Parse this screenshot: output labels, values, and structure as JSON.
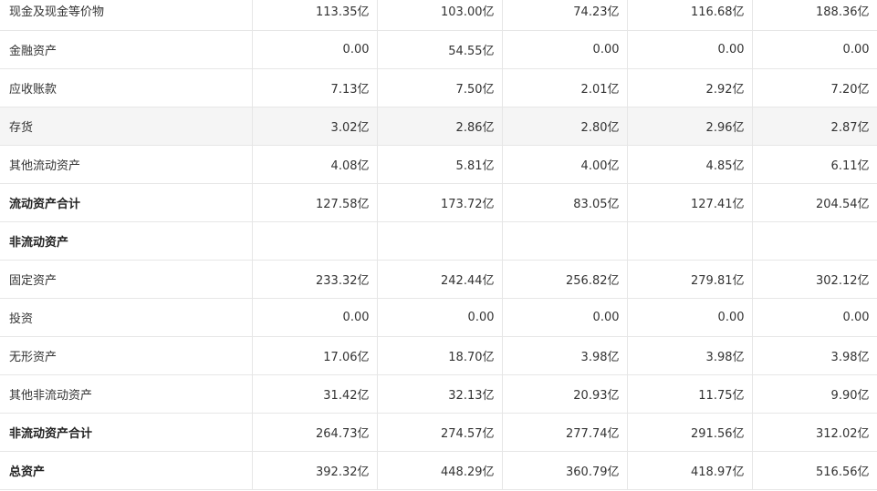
{
  "balance_sheet": {
    "rows": [
      {
        "label": "现金及现金等价物",
        "values": [
          "113.35亿",
          "103.00亿",
          "74.23亿",
          "116.68亿",
          "188.36亿"
        ],
        "bold": false,
        "shaded": false
      },
      {
        "label": "金融资产",
        "values": [
          "0.00",
          "54.55亿",
          "0.00",
          "0.00",
          "0.00"
        ],
        "bold": false,
        "shaded": false
      },
      {
        "label": "应收账款",
        "values": [
          "7.13亿",
          "7.50亿",
          "2.01亿",
          "2.92亿",
          "7.20亿"
        ],
        "bold": false,
        "shaded": false
      },
      {
        "label": "存货",
        "values": [
          "3.02亿",
          "2.86亿",
          "2.80亿",
          "2.96亿",
          "2.87亿"
        ],
        "bold": false,
        "shaded": true
      },
      {
        "label": "其他流动资产",
        "values": [
          "4.08亿",
          "5.81亿",
          "4.00亿",
          "4.85亿",
          "6.11亿"
        ],
        "bold": false,
        "shaded": false
      },
      {
        "label": "流动资产合计",
        "values": [
          "127.58亿",
          "173.72亿",
          "83.05亿",
          "127.41亿",
          "204.54亿"
        ],
        "bold": true,
        "shaded": false
      },
      {
        "label": "非流动资产",
        "values": [
          "",
          "",
          "",
          "",
          ""
        ],
        "bold": true,
        "shaded": false
      },
      {
        "label": "固定资产",
        "values": [
          "233.32亿",
          "242.44亿",
          "256.82亿",
          "279.81亿",
          "302.12亿"
        ],
        "bold": false,
        "shaded": false
      },
      {
        "label": "投资",
        "values": [
          "0.00",
          "0.00",
          "0.00",
          "0.00",
          "0.00"
        ],
        "bold": false,
        "shaded": false
      },
      {
        "label": "无形资产",
        "values": [
          "17.06亿",
          "18.70亿",
          "3.98亿",
          "3.98亿",
          "3.98亿"
        ],
        "bold": false,
        "shaded": false
      },
      {
        "label": "其他非流动资产",
        "values": [
          "31.42亿",
          "32.13亿",
          "20.93亿",
          "11.75亿",
          "9.90亿"
        ],
        "bold": false,
        "shaded": false
      },
      {
        "label": "非流动资产合计",
        "values": [
          "264.73亿",
          "274.57亿",
          "277.74亿",
          "291.56亿",
          "312.02亿"
        ],
        "bold": true,
        "shaded": false
      },
      {
        "label": "总资产",
        "values": [
          "392.32亿",
          "448.29亿",
          "360.79亿",
          "418.97亿",
          "516.56亿"
        ],
        "bold": true,
        "shaded": false
      }
    ]
  }
}
